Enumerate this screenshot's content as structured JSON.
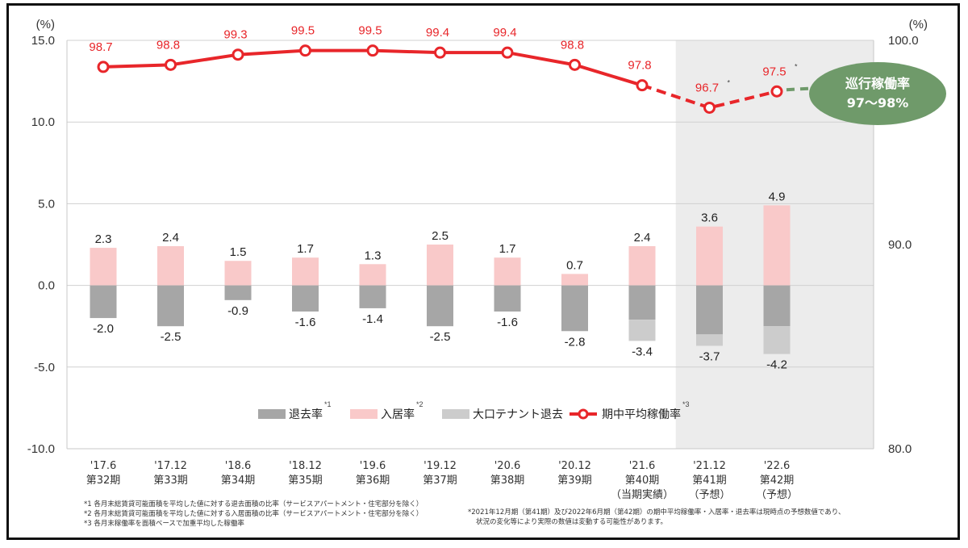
{
  "chart_data": {
    "type": "bar",
    "categories": [
      [
        "'17.6",
        "第32期",
        ""
      ],
      [
        "'17.12",
        "第33期",
        ""
      ],
      [
        "'18.6",
        "第34期",
        ""
      ],
      [
        "'18.12",
        "第35期",
        ""
      ],
      [
        "'19.6",
        "第36期",
        ""
      ],
      [
        "'19.12",
        "第37期",
        ""
      ],
      [
        "'20.6",
        "第38期",
        ""
      ],
      [
        "'20.12",
        "第39期",
        ""
      ],
      [
        "'21.6",
        "第40期",
        "（当期実績）"
      ],
      [
        "'21.12",
        "第41期",
        "（予想）"
      ],
      [
        "'22.6",
        "第42期",
        "（予想）"
      ]
    ],
    "left_axis": {
      "unit": "(%)",
      "min": -10,
      "max": 15,
      "ticks": [
        "-10.0",
        "-5.0",
        "0.0",
        "5.0",
        "10.0",
        "15.0"
      ]
    },
    "right_axis": {
      "unit": "(%)",
      "min": 80,
      "max": 100,
      "ticks": [
        "80.0",
        "90.0",
        "100.0"
      ]
    },
    "series": [
      {
        "name": "退去率",
        "note": "*1",
        "color": "#a6a6a6",
        "values": [
          -2.0,
          -2.5,
          -0.9,
          -1.6,
          -1.4,
          -2.5,
          -1.6,
          -2.8,
          -2.1,
          -3.0,
          -2.5
        ]
      },
      {
        "name": "入居率",
        "note": "*2",
        "color": "#f9c9c9",
        "values": [
          2.3,
          2.4,
          1.5,
          1.7,
          1.3,
          2.5,
          1.7,
          0.7,
          2.4,
          3.6,
          4.9
        ]
      },
      {
        "name": "大口テナント退去",
        "note": "",
        "color": "#cccccc",
        "values": [
          0,
          0,
          0,
          0,
          0,
          0,
          0,
          0,
          -1.3,
          -0.7,
          -1.7
        ]
      },
      {
        "name": "期中平均稼働率",
        "note": "*3",
        "type": "line",
        "axis": "right",
        "color": "#e8262a",
        "values": [
          98.7,
          98.8,
          99.3,
          99.5,
          99.5,
          99.4,
          99.4,
          98.8,
          97.8,
          96.7,
          97.5
        ],
        "label_notes": [
          "",
          "",
          "",
          "",
          "",
          "",
          "",
          "",
          "",
          "*",
          "*"
        ]
      }
    ],
    "bar_labels_pos": [
      "2.3",
      "2.4",
      "1.5",
      "1.7",
      "1.3",
      "2.5",
      "1.7",
      "0.7",
      "2.4",
      "3.6",
      "4.9"
    ],
    "bar_labels_neg": [
      "-2.0",
      "-2.5",
      "-0.9",
      "-1.6",
      "-1.4",
      "-2.5",
      "-1.6",
      "-2.8",
      "-3.4",
      "-3.7",
      "-4.2"
    ],
    "line_labels": [
      "98.7",
      "98.8",
      "99.3",
      "99.5",
      "99.5",
      "99.4",
      "99.4",
      "98.8",
      "97.8",
      "96.7",
      "97.5"
    ],
    "forecast_shaded_from_index": 9,
    "dashed_from_index": 8,
    "grid": true,
    "legend_position": "bottom-center"
  },
  "badge": {
    "line1": "巡行稼働率",
    "line2": "97～98%",
    "color": "#6f9a6a"
  },
  "footnotes_left": [
    "*1  各月末総賃貸可能面積を平均した値に対する退去面積の比率（サービスアパートメント・住宅部分を除く）",
    "*2  各月末総賃貸可能面積を平均した値に対する入居面積の比率（サービスアパートメント・住宅部分を除く）",
    "*3  各月末稼働率を面積ベースで加重平均した稼働率"
  ],
  "footnotes_right": [
    "*2021年12月期（第41期）及び2022年6月期（第42期）の期中平均稼働率・入居率・退去率は現時点の予想数値であり、",
    "状況の変化等により実際の数値は変動する可能性があります。"
  ]
}
